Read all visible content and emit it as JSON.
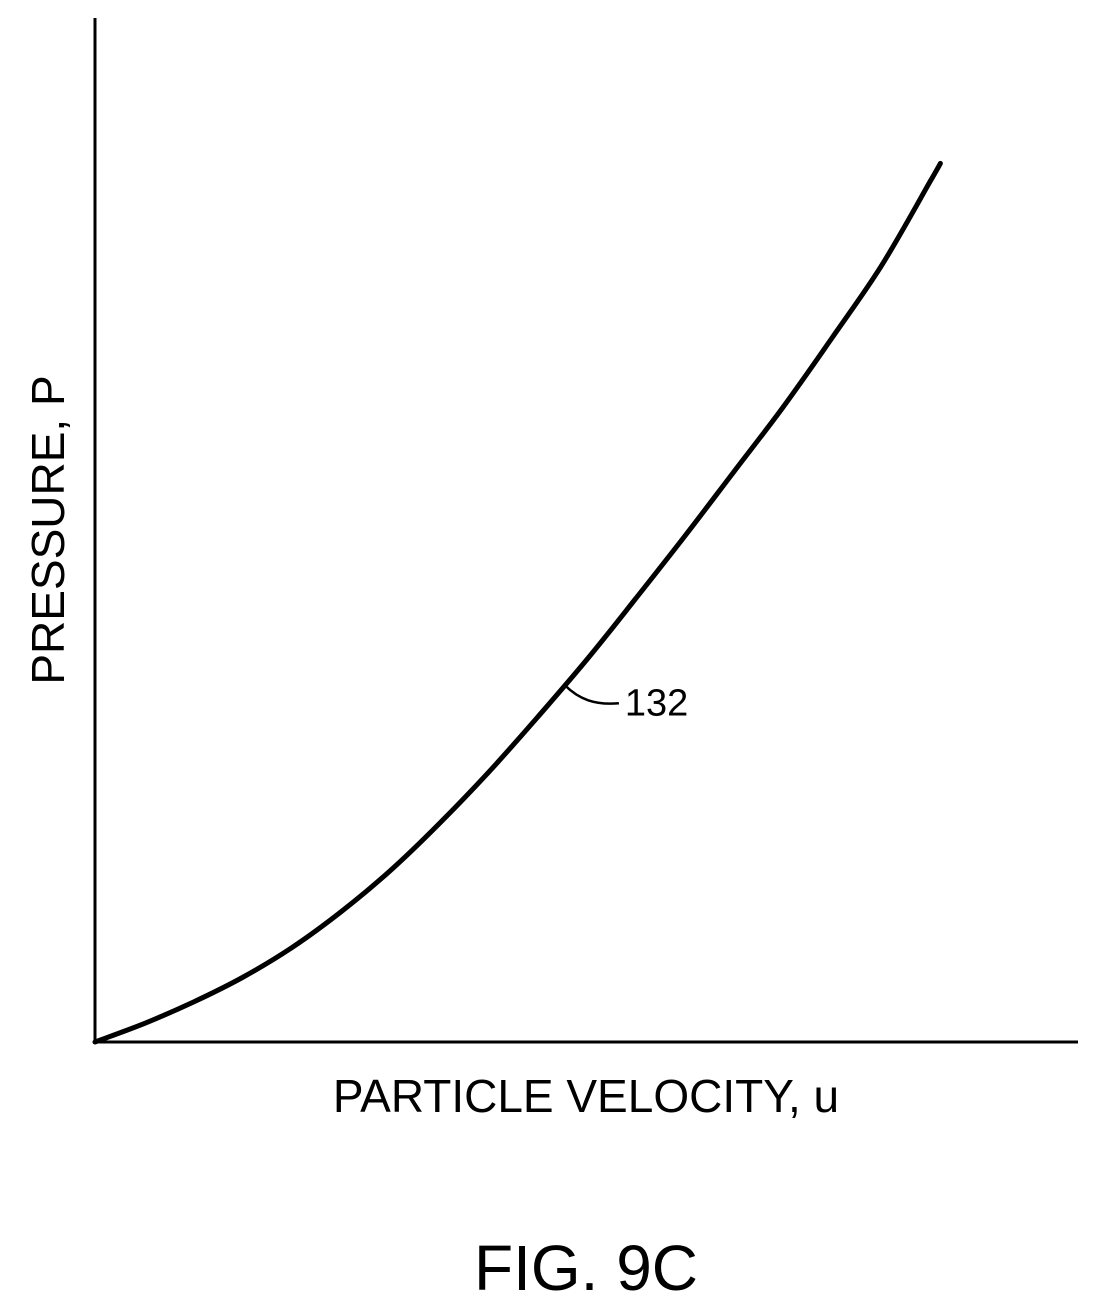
{
  "chart_data": {
    "type": "line",
    "title": "",
    "xlabel": "PARTICLE VELOCITY, u",
    "ylabel": "PRESSURE, P",
    "grid": false,
    "legend": "none",
    "xlim": [
      0,
      100
    ],
    "ylim": [
      0,
      100
    ],
    "series": [
      {
        "reference_numeral": "132",
        "color": "#000000",
        "x": [
          0,
          5,
          10,
          15,
          20,
          25,
          30,
          35,
          40,
          45,
          50,
          55,
          60,
          65,
          70,
          75,
          80,
          85,
          86
        ],
        "y": [
          0,
          1.8,
          3.9,
          6.3,
          9.2,
          12.7,
          16.7,
          21.3,
          26.3,
          31.7,
          37.3,
          43.3,
          49.4,
          55.7,
          62.0,
          68.8,
          75.8,
          84.1,
          85.8
        ],
        "callout_at_x": 47.8
      }
    ]
  },
  "figure_label": "FIG. 9C"
}
